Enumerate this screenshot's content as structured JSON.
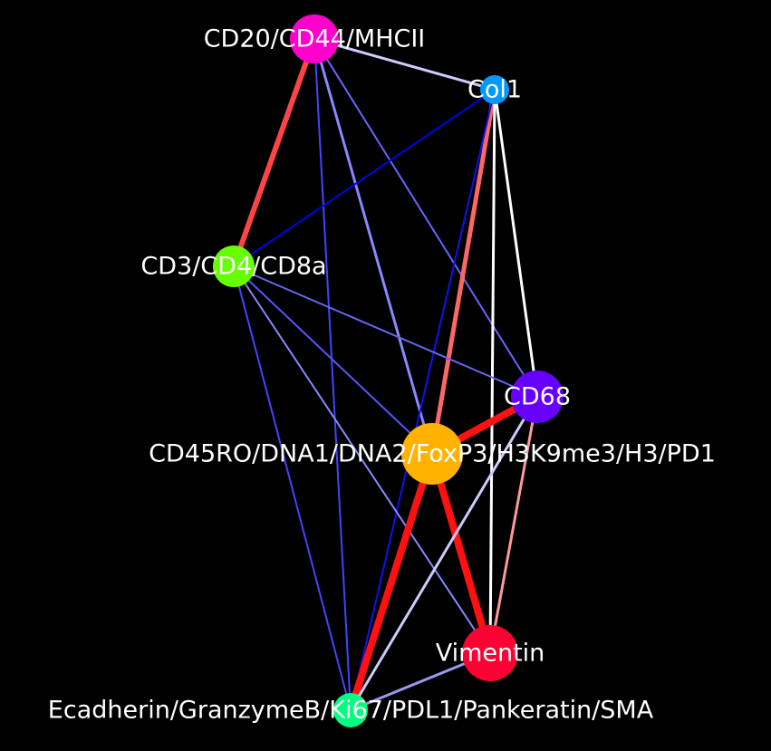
{
  "background": "#000000",
  "label_color": "#ffffff",
  "nodes": [
    {
      "id": "cd20",
      "label": "CD20/CD44/MHCII",
      "color": "#ff00cc"
    },
    {
      "id": "col1",
      "label": "Col1",
      "color": "#0099ff"
    },
    {
      "id": "cd3",
      "label": "CD3/CD4/CD8a",
      "color": "#66ff00"
    },
    {
      "id": "cd68",
      "label": "CD68",
      "color": "#6600ff"
    },
    {
      "id": "cd45",
      "label": "CD45RO/DNA1/DNA2/FoxP3/H3K9me3/H3/PD1",
      "color": "#ffb300"
    },
    {
      "id": "vim",
      "label": "Vimentin",
      "color": "#ff0033"
    },
    {
      "id": "ecad",
      "label": "Ecadherin/GranzymeB/Ki67/PDL1/Pankeratin/SMA",
      "color": "#00ff80"
    }
  ],
  "edges": [
    {
      "source": "cd20",
      "target": "col1",
      "color": "#ccccff",
      "weight": 3
    },
    {
      "source": "cd20",
      "target": "cd3",
      "color": "#ff4444",
      "weight": 6
    },
    {
      "source": "cd20",
      "target": "cd45",
      "color": "#8888ff",
      "weight": 3
    },
    {
      "source": "cd20",
      "target": "cd68",
      "color": "#6666ff",
      "weight": 2
    },
    {
      "source": "cd20",
      "target": "ecad",
      "color": "#4444ff",
      "weight": 2
    },
    {
      "source": "col1",
      "target": "cd3",
      "color": "#0000ee",
      "weight": 2
    },
    {
      "source": "col1",
      "target": "cd45",
      "color": "#ff6666",
      "weight": 5
    },
    {
      "source": "col1",
      "target": "cd68",
      "color": "#ffffff",
      "weight": 3
    },
    {
      "source": "col1",
      "target": "vim",
      "color": "#ffffff",
      "weight": 3
    },
    {
      "source": "col1",
      "target": "ecad",
      "color": "#1111ee",
      "weight": 2
    },
    {
      "source": "cd3",
      "target": "cd68",
      "color": "#6666ee",
      "weight": 2
    },
    {
      "source": "cd3",
      "target": "cd45",
      "color": "#5555ff",
      "weight": 2
    },
    {
      "source": "cd3",
      "target": "vim",
      "color": "#8888ff",
      "weight": 2
    },
    {
      "source": "cd3",
      "target": "ecad",
      "color": "#4444ff",
      "weight": 2
    },
    {
      "source": "cd45",
      "target": "cd68",
      "color": "#ff1111",
      "weight": 8
    },
    {
      "source": "cd45",
      "target": "vim",
      "color": "#ff1111",
      "weight": 8
    },
    {
      "source": "cd45",
      "target": "ecad",
      "color": "#ff1111",
      "weight": 8
    },
    {
      "source": "cd68",
      "target": "vim",
      "color": "#ff9999",
      "weight": 3
    },
    {
      "source": "cd68",
      "target": "ecad",
      "color": "#ccccff",
      "weight": 3
    },
    {
      "source": "vim",
      "target": "ecad",
      "color": "#9999ee",
      "weight": 3
    }
  ]
}
